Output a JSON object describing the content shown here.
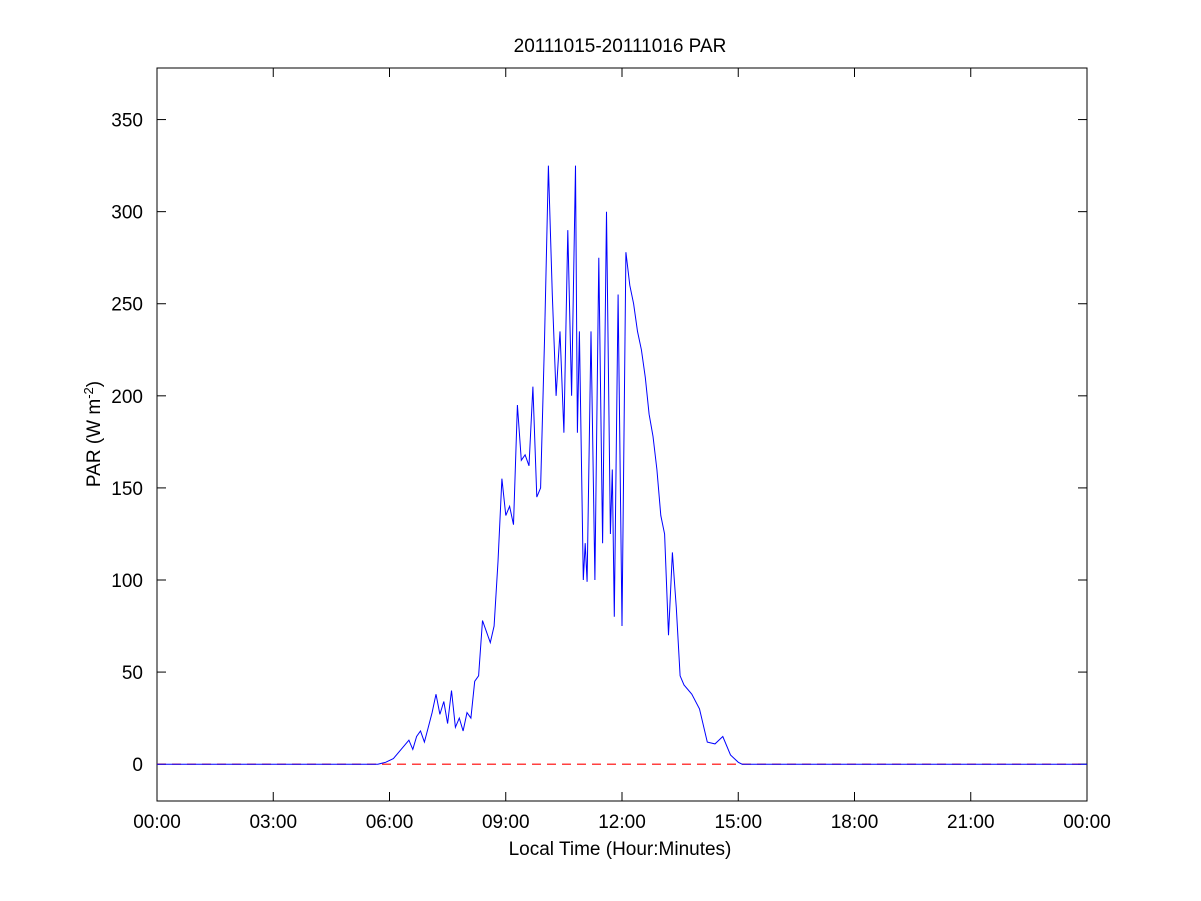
{
  "chart_data": {
    "type": "line",
    "title": "20111015-20111016 PAR",
    "xlabel": "Local Time (Hour:Minutes)",
    "ylabel": "PAR (W m",
    "ylabel_superscript": "-2",
    "ylabel_suffix": ")",
    "x_unit": "hours",
    "xlim": [
      0,
      24
    ],
    "ylim": [
      -20,
      378
    ],
    "x_ticks": [
      0,
      3,
      6,
      9,
      12,
      15,
      18,
      21,
      24
    ],
    "x_tick_labels": [
      "00:00",
      "03:00",
      "06:00",
      "09:00",
      "12:00",
      "15:00",
      "18:00",
      "21:00",
      "00:00"
    ],
    "y_ticks": [
      0,
      50,
      100,
      150,
      200,
      250,
      300,
      350
    ],
    "y_tick_labels": [
      "0",
      "50",
      "100",
      "150",
      "200",
      "250",
      "300",
      "350"
    ],
    "grid": false,
    "series": [
      {
        "color": "#0000ff",
        "x": [
          0,
          5.7,
          5.9,
          6.1,
          6.3,
          6.5,
          6.6,
          6.7,
          6.8,
          6.9,
          7.0,
          7.1,
          7.2,
          7.3,
          7.4,
          7.5,
          7.6,
          7.7,
          7.8,
          7.9,
          8.0,
          8.1,
          8.2,
          8.3,
          8.4,
          8.5,
          8.6,
          8.7,
          8.8,
          8.9,
          9.0,
          9.1,
          9.2,
          9.3,
          9.4,
          9.5,
          9.6,
          9.7,
          9.8,
          9.9,
          10.0,
          10.1,
          10.2,
          10.3,
          10.4,
          10.5,
          10.6,
          10.7,
          10.8,
          10.85,
          10.9,
          11.0,
          11.05,
          11.1,
          11.2,
          11.3,
          11.4,
          11.5,
          11.6,
          11.7,
          11.75,
          11.8,
          11.9,
          12.0,
          12.1,
          12.2,
          12.3,
          12.4,
          12.5,
          12.6,
          12.7,
          12.8,
          12.9,
          13.0,
          13.1,
          13.2,
          13.3,
          13.35,
          13.4,
          13.5,
          13.6,
          13.8,
          14.0,
          14.2,
          14.4,
          14.6,
          14.8,
          15.0,
          15.1,
          15.2,
          15.3,
          15.4,
          15.5,
          15.6,
          15.7,
          15.8,
          15.9,
          16.0,
          16.2,
          16.4,
          16.5,
          16.6,
          16.8,
          17.0,
          17.2,
          17.4,
          17.6,
          17.8,
          18.0,
          24
        ],
        "y": [
          0,
          0,
          1,
          3,
          8,
          13,
          8,
          15,
          18,
          12,
          20,
          28,
          38,
          27,
          34,
          22,
          40,
          20,
          25,
          18,
          28,
          25,
          45,
          48,
          78,
          72,
          66,
          75,
          110,
          155,
          135,
          140,
          130,
          195,
          165,
          168,
          162,
          205,
          145,
          150,
          230,
          325,
          255,
          200,
          235,
          180,
          290,
          200,
          325,
          180,
          235,
          100,
          120,
          99,
          235,
          100,
          275,
          120,
          300,
          125,
          160,
          80,
          255,
          75,
          278,
          260,
          250,
          235,
          225,
          210,
          190,
          178,
          160,
          135,
          125,
          70,
          115,
          100,
          85,
          48,
          43,
          38,
          30,
          12,
          11,
          15,
          5,
          1,
          0,
          0,
          0,
          0,
          0,
          0,
          0,
          0,
          0,
          0,
          0,
          0,
          0,
          0,
          0,
          0,
          0,
          0,
          0,
          0,
          0,
          0
        ]
      },
      {
        "color": "#ff0000",
        "dash": "dashed",
        "x": [
          0,
          24
        ],
        "y": [
          0,
          0
        ]
      }
    ]
  }
}
